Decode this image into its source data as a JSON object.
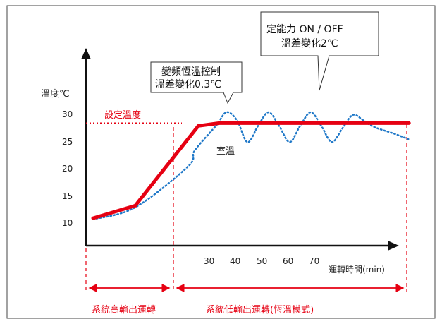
{
  "chart_data": {
    "type": "line",
    "ylabel": "溫度℃",
    "xlabel": "運轉時間(min)",
    "y_ticks": [
      "30",
      "25",
      "20",
      "15",
      "10"
    ],
    "x_ticks": [
      "30",
      "40",
      "50",
      "60",
      "70"
    ],
    "ylim": [
      5,
      33
    ],
    "setpoint": {
      "label": "設定溫度",
      "value": 28
    },
    "series": [
      {
        "name": "",
        "style": "solid",
        "color": "#e60012",
        "x": [
          0,
          12,
          30,
          36,
          90
        ],
        "y": [
          10.5,
          12.8,
          27.5,
          28,
          28
        ]
      },
      {
        "name": "室溫",
        "style": "dotted",
        "color": "#1f78c8",
        "x": [
          0,
          12,
          27,
          29,
          35,
          38,
          41,
          44,
          47,
          50,
          53,
          56,
          59,
          62,
          65,
          68,
          71,
          74,
          77,
          80,
          86,
          90
        ],
        "y": [
          10.3,
          12.5,
          20,
          23,
          27.5,
          30,
          28.5,
          24.5,
          27.5,
          30,
          27.5,
          24.5,
          27.5,
          30,
          27.5,
          24.5,
          27,
          29.5,
          28.5,
          27.3,
          26,
          25
        ]
      }
    ],
    "series_label": "室溫",
    "callouts": [
      {
        "lines": [
          "變頻恆溫控制",
          "溫差變化0.3℃"
        ]
      },
      {
        "lines": [
          "定能力 ON / OFF",
          "溫差變化2℃"
        ]
      }
    ],
    "phases": [
      {
        "label": "系統高輸出運轉"
      },
      {
        "label": "系統低輸出運轉(恆溫模式)"
      }
    ],
    "colors": {
      "red": "#e60012",
      "blue": "#1f78c8",
      "axis": "#111111",
      "frame": "#444444"
    }
  }
}
